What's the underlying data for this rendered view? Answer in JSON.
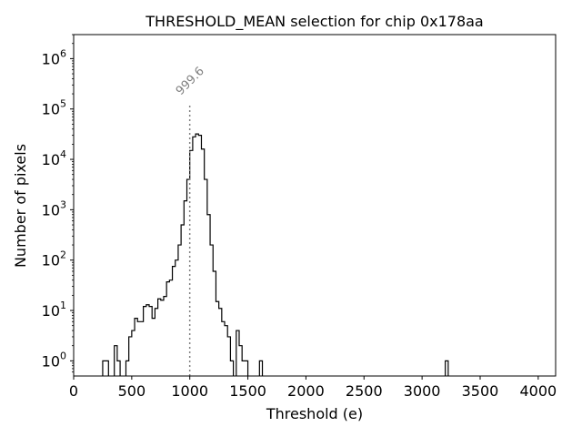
{
  "chart_data": {
    "type": "step-histogram",
    "title": "THRESHOLD_MEAN selection for chip 0x178aa",
    "xlabel": "Threshold (e)",
    "ylabel": "Number of pixels",
    "xlim": [
      0,
      4150
    ],
    "xticks": [
      0,
      500,
      1000,
      1500,
      2000,
      2500,
      3000,
      3500,
      4000
    ],
    "xtick_labels": [
      "0",
      "500",
      "1000",
      "1500",
      "2000",
      "2500",
      "3000",
      "3500",
      "4000"
    ],
    "yscale": "log",
    "ylim": [
      0.5,
      3000000
    ],
    "yticks": [
      {
        "base": "10",
        "exp": "0",
        "value": 1
      },
      {
        "base": "10",
        "exp": "1",
        "value": 10
      },
      {
        "base": "10",
        "exp": "2",
        "value": 100
      },
      {
        "base": "10",
        "exp": "3",
        "value": 1000
      },
      {
        "base": "10",
        "exp": "4",
        "value": 10000
      },
      {
        "base": "10",
        "exp": "5",
        "value": 100000
      },
      {
        "base": "10",
        "exp": "6",
        "value": 1000000
      }
    ],
    "bin_edges_start": 0,
    "bin_width": 25,
    "counts": [
      0,
      0,
      0,
      0,
      0,
      0,
      0,
      0,
      0,
      0,
      1,
      1,
      0,
      0,
      2,
      1,
      0,
      0,
      1,
      3,
      4,
      7,
      6,
      6,
      12,
      13,
      12,
      7,
      11,
      17,
      16,
      19,
      37,
      40,
      75,
      100,
      200,
      500,
      1500,
      4000,
      15000,
      28000,
      32000,
      30000,
      16000,
      4000,
      800,
      200,
      60,
      15,
      11,
      6,
      5,
      3,
      1,
      0,
      4,
      2,
      1,
      1,
      0,
      0,
      0,
      0,
      1,
      0,
      0,
      0,
      0,
      0,
      0,
      0,
      0,
      0,
      0,
      0,
      0,
      0,
      0,
      0,
      0,
      0,
      0,
      0,
      0,
      0,
      0,
      0,
      0,
      0,
      0,
      0,
      0,
      0,
      0,
      0,
      0,
      0,
      0,
      0,
      0,
      0,
      0,
      0,
      0,
      0,
      0,
      0,
      0,
      0,
      0,
      0,
      0,
      0,
      0,
      0,
      0,
      0,
      0,
      0,
      0,
      0,
      0,
      0,
      0,
      0,
      0,
      0,
      1,
      0
    ],
    "vline": {
      "x": 999.6,
      "label": "999.6",
      "color": "#808080",
      "style": "dotted"
    },
    "line_color": "#000000"
  }
}
